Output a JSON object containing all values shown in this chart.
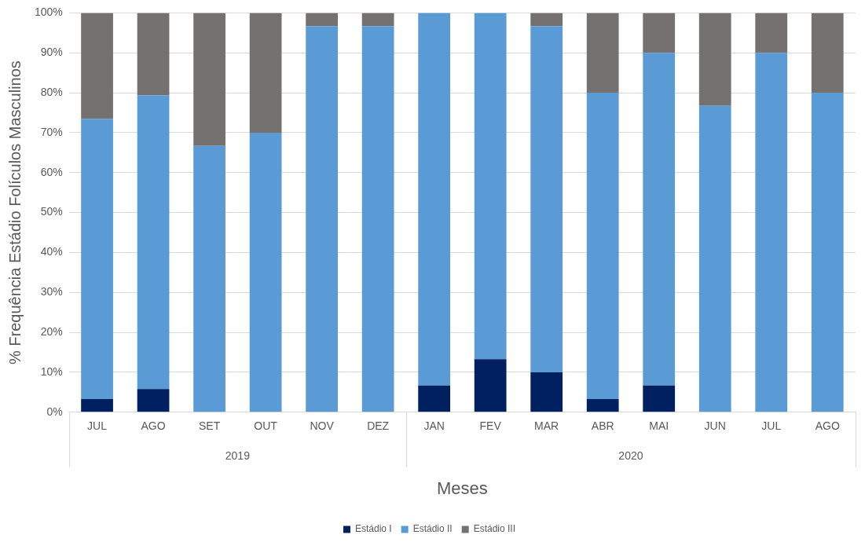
{
  "chart_data": {
    "type": "bar",
    "stacked": true,
    "xlabel": "Meses",
    "ylabel": "% Frequência Estádio Folículos Masculinos",
    "x": [
      "2019-07",
      "2019-08",
      "2019-09",
      "2019-10",
      "2019-11",
      "2019-12",
      "2020-01",
      "2020-02",
      "2020-03",
      "2020-04",
      "2020-05",
      "2020-06",
      "2020-07",
      "2020-08"
    ],
    "xlim": [
      "2019-06-16",
      "2020-08-16"
    ],
    "xticks": [
      {
        "value": "2019-07",
        "label": "JUL"
      },
      {
        "value": "2019-08",
        "label": "AGO"
      },
      {
        "value": "2019-09",
        "label": "SET"
      },
      {
        "value": "2019-10",
        "label": "OUT"
      },
      {
        "value": "2019-11",
        "label": "NOV"
      },
      {
        "value": "2019-12",
        "label": "DEZ"
      },
      {
        "value": "2020-01",
        "label": "JAN"
      },
      {
        "value": "2020-02",
        "label": "FEV"
      },
      {
        "value": "2020-03",
        "label": "MAR"
      },
      {
        "value": "2020-04",
        "label": "ABR"
      },
      {
        "value": "2020-05",
        "label": "MAI"
      },
      {
        "value": "2020-06",
        "label": "JUN"
      },
      {
        "value": "2020-07",
        "label": "JUL"
      },
      {
        "value": "2020-08",
        "label": "AGO"
      }
    ],
    "series": [
      {
        "name": "Estádio I",
        "color": "#002060",
        "values": [
          3.3,
          5.8,
          0,
          0,
          0,
          0,
          6.7,
          13.3,
          10,
          3.3,
          6.7,
          0,
          0,
          0
        ]
      },
      {
        "name": "Estádio II",
        "color": "#5b9bd5",
        "values": [
          70.2,
          73.6,
          66.7,
          70,
          96.7,
          96.7,
          93.3,
          86.7,
          86.7,
          76.7,
          83.3,
          76.7,
          90,
          80
        ]
      },
      {
        "name": "Estádio III",
        "color": "#767171",
        "values": [
          26.5,
          20.6,
          33.3,
          30,
          3.3,
          3.3,
          0,
          0,
          3.3,
          20,
          10,
          23.3,
          10,
          20
        ]
      }
    ],
    "ylim": [
      0,
      100
    ],
    "yticks": [
      {
        "value": 0,
        "label": "0%"
      },
      {
        "value": 10,
        "label": "10%"
      },
      {
        "value": 20,
        "label": "20%"
      },
      {
        "value": 30,
        "label": "30%"
      },
      {
        "value": 40,
        "label": "40%"
      },
      {
        "value": 50,
        "label": "50%"
      },
      {
        "value": 60,
        "label": "60%"
      },
      {
        "value": 70,
        "label": "70%"
      },
      {
        "value": 80,
        "label": "80%"
      },
      {
        "value": 90,
        "label": "90%"
      },
      {
        "value": 100,
        "label": "100%"
      }
    ],
    "grid": "y",
    "legend": "bottom",
    "annotations": [
      "2019",
      "2020"
    ]
  }
}
